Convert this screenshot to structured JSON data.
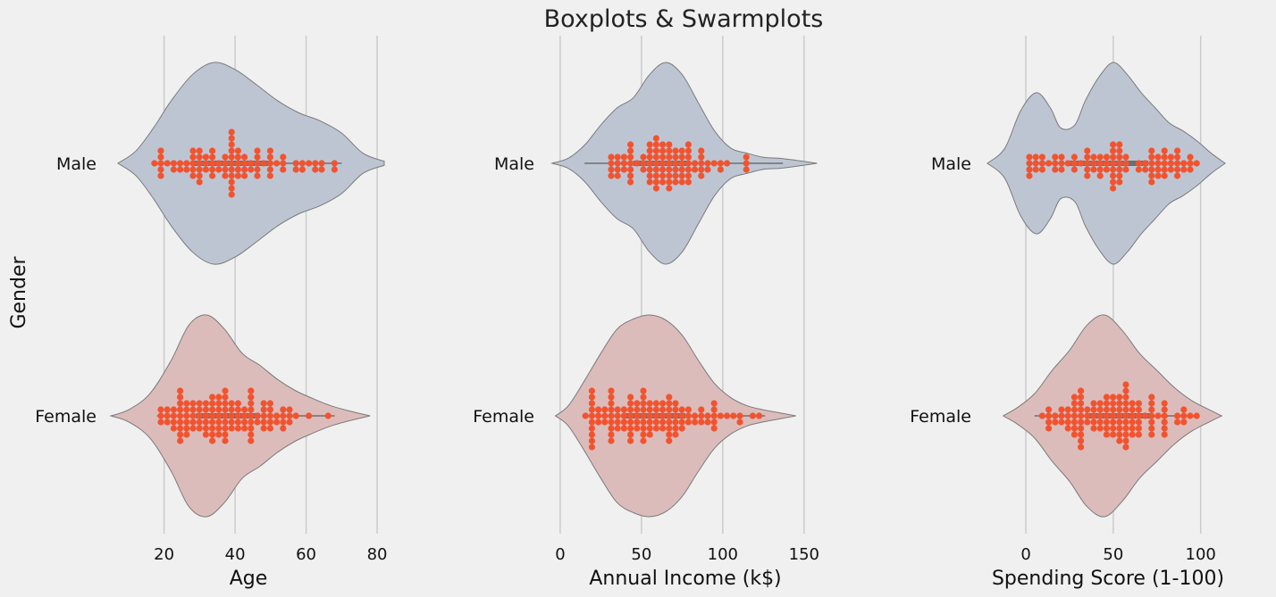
{
  "figure": {
    "title": "Boxplots & Swarmplots",
    "ylabel": "Gender"
  },
  "colors": {
    "male": "#bec5d2",
    "female": "#dcbcbb",
    "point": "#f2532f",
    "outline": "#7a7a7a",
    "box": "#6e6e6e"
  },
  "chart_data": [
    {
      "type": "violin+swarm",
      "xlabel": "Age",
      "xticks": [
        20,
        40,
        60,
        80
      ],
      "categories": [
        "Male",
        "Female"
      ],
      "series": [
        {
          "category": "Male",
          "range": [
            18,
            70
          ],
          "box": {
            "q1": 28,
            "median": 36,
            "q3": 50
          },
          "density": [
            [
              7,
              0
            ],
            [
              12,
              0.12
            ],
            [
              17,
              0.35
            ],
            [
              22,
              0.62
            ],
            [
              28,
              0.88
            ],
            [
              34,
              1.0
            ],
            [
              40,
              0.93
            ],
            [
              46,
              0.78
            ],
            [
              52,
              0.62
            ],
            [
              58,
              0.5
            ],
            [
              64,
              0.42
            ],
            [
              70,
              0.3
            ],
            [
              76,
              0.1
            ],
            [
              82,
              0.02
            ]
          ]
        },
        {
          "category": "Female",
          "range": [
            18,
            68
          ],
          "box": {
            "q1": 29,
            "median": 35,
            "q3": 47
          },
          "density": [
            [
              5,
              0
            ],
            [
              10,
              0.06
            ],
            [
              16,
              0.22
            ],
            [
              22,
              0.55
            ],
            [
              27,
              0.9
            ],
            [
              32,
              1.0
            ],
            [
              37,
              0.86
            ],
            [
              42,
              0.62
            ],
            [
              47,
              0.5
            ],
            [
              52,
              0.36
            ],
            [
              57,
              0.25
            ],
            [
              62,
              0.17
            ],
            [
              67,
              0.1
            ],
            [
              72,
              0.05
            ],
            [
              78,
              0
            ]
          ]
        }
      ]
    },
    {
      "type": "violin+swarm",
      "xlabel": "Annual Income (k$)",
      "xticks": [
        0,
        50,
        100,
        150
      ],
      "categories": [
        "Male",
        "Female"
      ],
      "series": [
        {
          "category": "Male",
          "range": [
            15,
            137
          ],
          "box": {
            "q1": 45,
            "median": 62,
            "q3": 78
          },
          "density": [
            [
              -5,
              0
            ],
            [
              5,
              0.05
            ],
            [
              15,
              0.18
            ],
            [
              25,
              0.38
            ],
            [
              35,
              0.55
            ],
            [
              45,
              0.65
            ],
            [
              55,
              0.88
            ],
            [
              65,
              1.0
            ],
            [
              75,
              0.88
            ],
            [
              85,
              0.6
            ],
            [
              95,
              0.32
            ],
            [
              105,
              0.15
            ],
            [
              115,
              0.1
            ],
            [
              125,
              0.06
            ],
            [
              135,
              0.05
            ],
            [
              145,
              0.03
            ],
            [
              158,
              0
            ]
          ]
        },
        {
          "category": "Female",
          "range": [
            16,
            126
          ],
          "box": {
            "q1": 38,
            "median": 60,
            "q3": 77
          },
          "density": [
            [
              -3,
              0
            ],
            [
              5,
              0.1
            ],
            [
              15,
              0.35
            ],
            [
              25,
              0.62
            ],
            [
              35,
              0.86
            ],
            [
              45,
              0.96
            ],
            [
              55,
              1.0
            ],
            [
              65,
              0.95
            ],
            [
              75,
              0.8
            ],
            [
              85,
              0.55
            ],
            [
              95,
              0.32
            ],
            [
              105,
              0.18
            ],
            [
              115,
              0.1
            ],
            [
              125,
              0.06
            ],
            [
              135,
              0.03
            ],
            [
              145,
              0
            ]
          ]
        }
      ]
    },
    {
      "type": "violin+swarm",
      "xlabel": "Spending Score (1-100)",
      "xticks": [
        0,
        50,
        100
      ],
      "categories": [
        "Male",
        "Female"
      ],
      "series": [
        {
          "category": "Male",
          "range": [
            1,
            97
          ],
          "box": {
            "q1": 24,
            "median": 50,
            "q3": 70
          },
          "density": [
            [
              -22,
              0
            ],
            [
              -12,
              0.15
            ],
            [
              -3,
              0.52
            ],
            [
              6,
              0.7
            ],
            [
              14,
              0.55
            ],
            [
              20,
              0.35
            ],
            [
              28,
              0.38
            ],
            [
              34,
              0.62
            ],
            [
              42,
              0.86
            ],
            [
              50,
              1.0
            ],
            [
              58,
              0.88
            ],
            [
              66,
              0.7
            ],
            [
              74,
              0.55
            ],
            [
              82,
              0.4
            ],
            [
              90,
              0.32
            ],
            [
              98,
              0.22
            ],
            [
              106,
              0.1
            ],
            [
              114,
              0
            ]
          ]
        },
        {
          "category": "Female",
          "range": [
            5,
            99
          ],
          "box": {
            "q1": 35,
            "median": 46,
            "q3": 73
          },
          "density": [
            [
              -13,
              0
            ],
            [
              -5,
              0.08
            ],
            [
              5,
              0.22
            ],
            [
              15,
              0.45
            ],
            [
              25,
              0.65
            ],
            [
              35,
              0.9
            ],
            [
              45,
              1.0
            ],
            [
              55,
              0.85
            ],
            [
              65,
              0.62
            ],
            [
              75,
              0.45
            ],
            [
              85,
              0.28
            ],
            [
              95,
              0.15
            ],
            [
              105,
              0.06
            ],
            [
              112,
              0
            ]
          ]
        }
      ]
    }
  ]
}
